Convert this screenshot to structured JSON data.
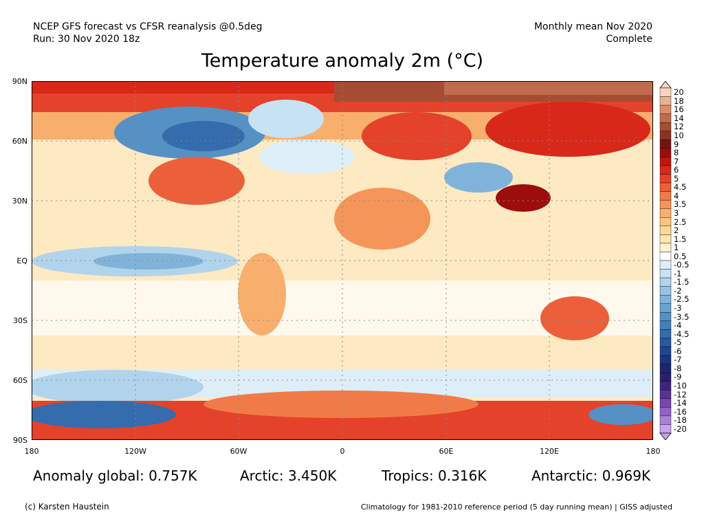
{
  "header": {
    "left_line1": "NCEP GFS forecast vs CFSR reanalysis @0.5deg",
    "left_line2": "Run: 30 Nov 2020 18z",
    "right_line1": "Monthly mean Nov 2020",
    "right_line2": "Complete"
  },
  "title": "Temperature anomaly 2m (°C)",
  "axes": {
    "lat_labels": [
      "90N",
      "60N",
      "30N",
      "EQ",
      "30S",
      "60S",
      "90S"
    ],
    "lon_labels": [
      "180",
      "120W",
      "60W",
      "0",
      "60E",
      "120E",
      "180"
    ]
  },
  "legend": {
    "labels": [
      "20",
      "18",
      "16",
      "14",
      "12",
      "10",
      "9",
      "8",
      "7",
      "6",
      "5",
      "4.5",
      "4",
      "3.5",
      "3",
      "2.5",
      "2",
      "1.5",
      "1",
      "0.5",
      "-0.5",
      "-1",
      "-1.5",
      "-2",
      "-2.5",
      "-3",
      "-3.5",
      "-4",
      "-4.5",
      "-5",
      "-6",
      "-7",
      "-8",
      "-9",
      "-10",
      "-12",
      "-14",
      "-16",
      "-18",
      "-20"
    ],
    "colors": [
      "#f6d4c0",
      "#eab193",
      "#d98e6c",
      "#c06b4e",
      "#a64c33",
      "#8a3322",
      "#741414",
      "#9e0d0d",
      "#c0150f",
      "#d8281a",
      "#e4422a",
      "#ec5f3a",
      "#f17b48",
      "#f5955a",
      "#f8ae6d",
      "#fac480",
      "#fcd797",
      "#fde6b0",
      "#fef2cc",
      "#ffffff",
      "#deeef8",
      "#c7e2f2",
      "#b0d4eb",
      "#98c4e2",
      "#80b3d9",
      "#6aa2cf",
      "#5591c4",
      "#437fb9",
      "#346cad",
      "#28599f",
      "#1f4790",
      "#1a357f",
      "#1c256e",
      "#2a1e6e",
      "#40237f",
      "#5a3396",
      "#7448ad",
      "#8f62c5",
      "#ab80da",
      "#c7a3eb"
    ]
  },
  "stats": {
    "global": "Anomaly global: 0.757K",
    "arctic": "Arctic: 3.450K",
    "tropics": "Tropics: 0.316K",
    "antarctic": "Antarctic: 0.969K"
  },
  "footer": {
    "credit": "(c) Karsten Haustein",
    "note": "Climatology for 1981-2010 reference period (5 day running mean) | GISS adjusted"
  }
}
